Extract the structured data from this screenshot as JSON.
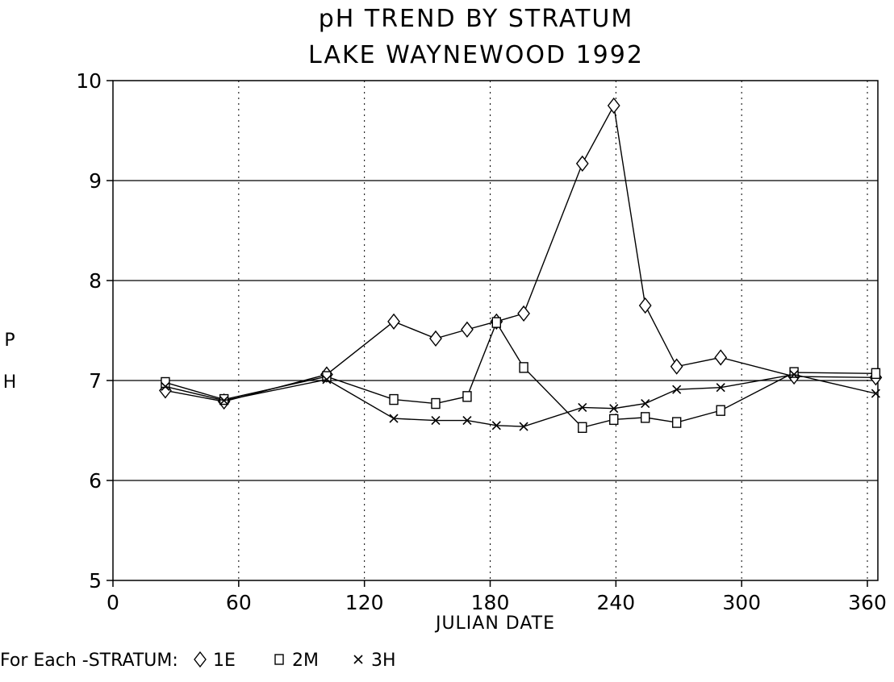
{
  "chart_data": {
    "type": "line",
    "title": "pH TREND BY STRATUM",
    "subtitle": "LAKE WAYNEWOOD 1992",
    "xlabel": "JULIAN DATE",
    "ylabel": "P H",
    "xlim": [
      0,
      365
    ],
    "ylim": [
      5,
      10
    ],
    "x_ticks": [
      0,
      60,
      120,
      180,
      240,
      300,
      360
    ],
    "y_ticks": [
      5,
      6,
      7,
      8,
      9,
      10
    ],
    "grid": "horizontal solid at each y tick, vertical dotted at each x tick",
    "legend": {
      "prefix": "For Each -STRATUM:",
      "placement": "bottom-left",
      "entries": [
        {
          "marker": "diamond",
          "symbol": "◇",
          "label": "1E"
        },
        {
          "marker": "square",
          "symbol": "□",
          "label": "2M"
        },
        {
          "marker": "x",
          "symbol": "×",
          "label": "3H"
        }
      ]
    },
    "series": [
      {
        "name": "1E",
        "marker": "diamond",
        "x": [
          25,
          53,
          102,
          134,
          154,
          169,
          183,
          196,
          224,
          239,
          254,
          269,
          290,
          325,
          364
        ],
        "y": [
          6.9,
          6.79,
          7.06,
          7.59,
          7.42,
          7.51,
          7.59,
          7.67,
          9.17,
          9.75,
          7.75,
          7.14,
          7.23,
          7.04,
          7.03
        ]
      },
      {
        "name": "2M",
        "marker": "square",
        "x": [
          25,
          53,
          102,
          134,
          154,
          169,
          183,
          196,
          224,
          239,
          254,
          269,
          290,
          325,
          364
        ],
        "y": [
          6.98,
          6.81,
          7.04,
          6.81,
          6.77,
          6.84,
          7.58,
          7.13,
          6.53,
          6.61,
          6.63,
          6.58,
          6.7,
          7.08,
          7.07
        ]
      },
      {
        "name": "3H",
        "marker": "x",
        "x": [
          25,
          53,
          102,
          134,
          154,
          169,
          183,
          196,
          224,
          239,
          254,
          269,
          290,
          325,
          364
        ],
        "y": [
          6.94,
          6.8,
          7.01,
          6.62,
          6.6,
          6.6,
          6.55,
          6.54,
          6.73,
          6.72,
          6.77,
          6.91,
          6.93,
          7.06,
          6.87
        ]
      }
    ]
  }
}
